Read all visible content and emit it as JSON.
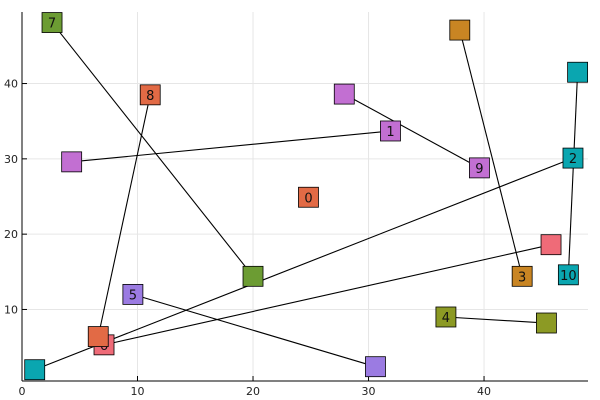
{
  "chart_data": {
    "type": "scatter",
    "title": "",
    "xlabel": "",
    "ylabel": "",
    "xlim": [
      0,
      49
    ],
    "ylim": [
      0.5,
      49.5
    ],
    "xticks": [
      0,
      10,
      20,
      30,
      40
    ],
    "yticks": [
      10,
      20,
      30,
      40
    ],
    "grid": true,
    "legend": "none",
    "points": [
      {
        "label": "0",
        "x": 24.8,
        "y": 24.9,
        "color": "#e26a45"
      },
      {
        "label": "1",
        "x": 31.9,
        "y": 33.7,
        "color": "#c26fd2"
      },
      {
        "label": "",
        "x": 4.3,
        "y": 29.6,
        "color": "#c26fd2"
      },
      {
        "label": "2",
        "x": 47.7,
        "y": 30.1,
        "color": "#0aa6b0"
      },
      {
        "label": "",
        "x": 1.1,
        "y": 2.0,
        "color": "#0aa6b0"
      },
      {
        "label": "3",
        "x": 43.3,
        "y": 14.4,
        "color": "#c98523"
      },
      {
        "label": "",
        "x": 37.9,
        "y": 47.1,
        "color": "#c98523"
      },
      {
        "label": "4",
        "x": 36.7,
        "y": 9.0,
        "color": "#8c9a24"
      },
      {
        "label": "",
        "x": 45.4,
        "y": 8.2,
        "color": "#8c9a24"
      },
      {
        "label": "5",
        "x": 9.6,
        "y": 12.0,
        "color": "#9b7be2"
      },
      {
        "label": "",
        "x": 30.6,
        "y": 2.4,
        "color": "#9b7be2"
      },
      {
        "label": "6",
        "x": 7.1,
        "y": 5.3,
        "color": "#ef6b78"
      },
      {
        "label": "",
        "x": 45.8,
        "y": 18.6,
        "color": "#ef6b78"
      },
      {
        "label": "7",
        "x": 2.6,
        "y": 48.1,
        "color": "#6c9c33"
      },
      {
        "label": "",
        "x": 20.0,
        "y": 14.4,
        "color": "#6c9c33"
      },
      {
        "label": "8",
        "x": 11.1,
        "y": 38.5,
        "color": "#e26a45"
      },
      {
        "label": "",
        "x": 6.6,
        "y": 6.4,
        "color": "#e26a45"
      },
      {
        "label": "9",
        "x": 39.6,
        "y": 28.8,
        "color": "#c26fd2"
      },
      {
        "label": "",
        "x": 27.9,
        "y": 38.6,
        "color": "#c26fd2"
      },
      {
        "label": "10",
        "x": 47.3,
        "y": 14.6,
        "color": "#0aa6b0"
      },
      {
        "label": "",
        "x": 48.1,
        "y": 41.5,
        "color": "#0aa6b0"
      }
    ],
    "edges": [
      [
        1,
        2
      ],
      [
        3,
        4
      ],
      [
        5,
        6
      ],
      [
        7,
        8
      ],
      [
        9,
        10
      ],
      [
        11,
        12
      ],
      [
        13,
        14
      ],
      [
        15,
        16
      ],
      [
        17,
        18
      ],
      [
        19,
        20
      ]
    ]
  }
}
